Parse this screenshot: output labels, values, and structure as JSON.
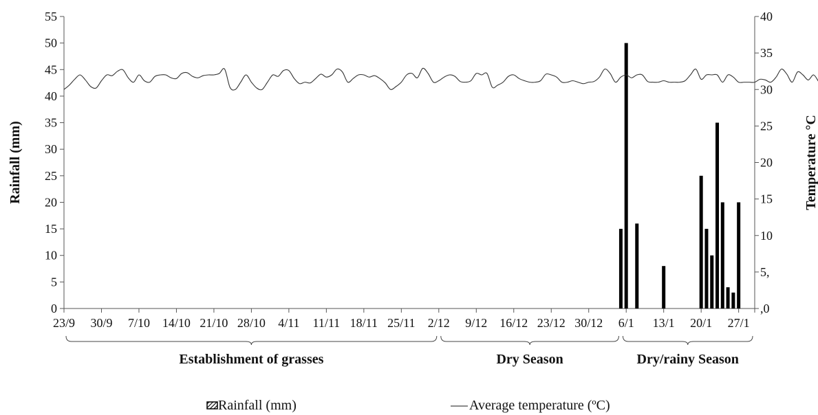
{
  "chart_data": {
    "type": "bar",
    "combo": "bar+line",
    "grid": false,
    "legend_position": "bottom",
    "x_tick_labels": [
      "23/9",
      "30/9",
      "7/10",
      "14/10",
      "21/10",
      "28/10",
      "4/11",
      "11/11",
      "18/11",
      "25/11",
      "2/12",
      "9/12",
      "16/12",
      "23/12",
      "30/12",
      "6/1",
      "13/1",
      "20/1",
      "27/1"
    ],
    "ylabel": "Rainfall (mm)",
    "y2label": "Temperature  °C",
    "ylim": [
      0,
      55
    ],
    "y_ticks": [
      "0",
      "5",
      "10",
      "15",
      "20",
      "25",
      "30",
      "35",
      "40",
      "45",
      "50",
      "55"
    ],
    "y2lim": [
      0,
      40
    ],
    "y2_ticks": [
      ",0",
      "5,",
      "10",
      "15",
      "20",
      "25",
      "30",
      "35",
      "40"
    ],
    "x_range": [
      "23/9",
      "30/1"
    ],
    "periods": [
      {
        "label": "Establishment of grasses",
        "from": "23/9",
        "to": "2/12"
      },
      {
        "label": "Dry Season",
        "from": "2/12",
        "to": "5/1"
      },
      {
        "label": "Dry/rainy Season",
        "from": "5/1",
        "to": "30/1"
      }
    ],
    "series": [
      {
        "name": "Rainfall  (mm)",
        "type": "bar",
        "axis": "left",
        "color": "#000000",
        "points": [
          {
            "x": "5/1",
            "y": 15
          },
          {
            "x": "6/1",
            "y": 50
          },
          {
            "x": "8/1",
            "y": 16
          },
          {
            "x": "13/1",
            "y": 8
          },
          {
            "x": "20/1",
            "y": 25
          },
          {
            "x": "21/1",
            "y": 15
          },
          {
            "x": "22/1",
            "y": 10
          },
          {
            "x": "23/1",
            "y": 35
          },
          {
            "x": "24/1",
            "y": 20
          },
          {
            "x": "25/1",
            "y": 4
          },
          {
            "x": "26/1",
            "y": 3
          },
          {
            "x": "27/1",
            "y": 20
          }
        ]
      },
      {
        "name": "Average temperature  (ºC)",
        "type": "line",
        "axis": "right",
        "color": "#333333",
        "x_start": "23/9",
        "x_step_days": 1,
        "values": [
          30.0,
          30.6,
          31.4,
          32.0,
          31.3,
          30.4,
          30.2,
          31.2,
          32.0,
          31.9,
          32.5,
          32.7,
          31.6,
          31.0,
          32.0,
          31.2,
          31.0,
          31.8,
          32.0,
          32.0,
          31.6,
          31.5,
          32.2,
          32.3,
          31.8,
          31.6,
          31.9,
          32.0,
          32.0,
          32.2,
          32.8,
          30.3,
          30.0,
          31.0,
          32.0,
          31.0,
          30.2,
          30.0,
          31.0,
          32.0,
          31.8,
          32.6,
          32.6,
          31.5,
          30.8,
          31.0,
          30.9,
          31.5,
          32.1,
          31.7,
          32.0,
          32.8,
          32.4,
          31.0,
          31.5,
          32.0,
          32.0,
          31.7,
          31.9,
          31.5,
          30.9,
          30.0,
          30.4,
          31.0,
          32.0,
          32.2,
          31.6,
          32.9,
          32.2,
          31.0,
          31.2,
          31.7,
          32.0,
          31.8,
          31.1,
          31.0,
          31.2,
          32.2,
          32.0,
          32.2,
          30.3,
          30.6,
          31.0,
          31.8,
          32.0,
          31.5,
          31.2,
          31.0,
          31.0,
          31.2,
          32.1,
          32.0,
          31.7,
          31.0,
          31.0,
          31.2,
          31.0,
          30.8,
          31.0,
          31.1,
          31.7,
          32.8,
          32.2,
          31.0,
          31.7,
          32.0,
          31.6,
          32.0,
          32.0,
          31.1,
          31.0,
          31.0,
          31.2,
          31.0,
          31.0,
          31.0,
          31.2,
          32.0,
          32.8,
          31.4,
          32.0,
          32.0,
          32.0,
          31.0,
          32.0,
          31.7,
          31.0,
          31.0,
          31.0,
          31.0,
          31.4,
          31.3,
          31.0,
          31.7,
          32.8,
          32.1,
          31.0,
          32.4,
          32.0,
          31.3,
          32.0,
          31.0,
          30.0,
          31.0,
          32.0,
          32.0,
          31.0,
          31.2,
          32.8,
          31.5,
          31.0,
          31.0,
          31.6,
          32.0,
          32.0,
          31.5,
          32.3,
          32.0,
          31.0,
          31.4,
          31.7,
          32.0,
          31.0,
          30.0,
          30.3,
          31.0,
          32.0,
          32.1,
          31.7,
          32.4,
          32.6,
          31.0,
          31.4,
          32.0,
          32.0,
          32.0,
          31.2,
          31.0,
          30.9,
          31.0,
          31.0,
          31.3,
          31.8,
          32.1,
          31.7,
          32.5,
          33.0,
          32.3,
          31.5,
          31.0,
          31.0,
          31.0,
          31.2,
          31.0,
          31.3,
          31.3,
          31.6,
          32.4,
          31.6,
          31.0,
          31.0,
          31.8,
          32.0,
          32.0,
          31.4,
          30.2,
          29.8,
          30.3,
          30.8,
          31.1,
          31.1,
          31.0,
          30.6,
          29.9,
          29.6,
          29.7,
          30.0,
          30.0,
          29.8,
          29.7,
          29.5,
          29.7,
          29.3,
          28.6,
          28.9,
          29.4,
          29.7,
          29.9,
          30.0,
          30.1,
          30.0,
          29.8,
          29.6,
          29.3,
          29.5,
          29.8,
          29.9,
          29.9,
          29.7,
          29.4,
          29.5,
          29.7,
          30.0,
          29.9,
          29.6
        ]
      }
    ]
  }
}
